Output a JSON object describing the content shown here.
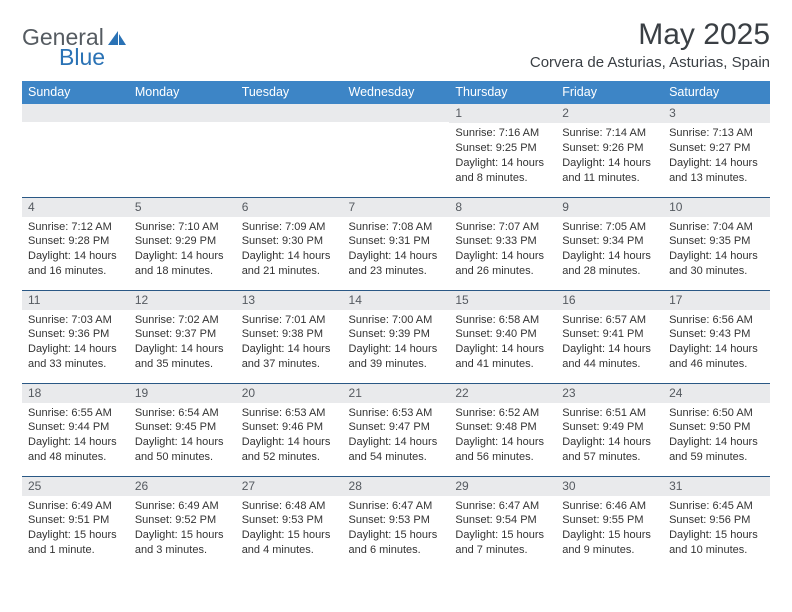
{
  "brand": {
    "general": "General",
    "blue": "Blue"
  },
  "title": {
    "month": "May 2025",
    "location": "Corvera de Asturias, Asturias, Spain"
  },
  "colors": {
    "header_bg": "#3d85c6",
    "header_text": "#ffffff",
    "rule": "#2a5885",
    "daynum_bg": "#e9eaec",
    "brand_blue": "#2a72b5",
    "brand_grey": "#555b61"
  },
  "daynames": [
    "Sunday",
    "Monday",
    "Tuesday",
    "Wednesday",
    "Thursday",
    "Friday",
    "Saturday"
  ],
  "weeks": [
    [
      {
        "n": "",
        "sr": "",
        "ss": "",
        "dl": ""
      },
      {
        "n": "",
        "sr": "",
        "ss": "",
        "dl": ""
      },
      {
        "n": "",
        "sr": "",
        "ss": "",
        "dl": ""
      },
      {
        "n": "",
        "sr": "",
        "ss": "",
        "dl": ""
      },
      {
        "n": "1",
        "sr": "Sunrise: 7:16 AM",
        "ss": "Sunset: 9:25 PM",
        "dl": "Daylight: 14 hours and 8 minutes."
      },
      {
        "n": "2",
        "sr": "Sunrise: 7:14 AM",
        "ss": "Sunset: 9:26 PM",
        "dl": "Daylight: 14 hours and 11 minutes."
      },
      {
        "n": "3",
        "sr": "Sunrise: 7:13 AM",
        "ss": "Sunset: 9:27 PM",
        "dl": "Daylight: 14 hours and 13 minutes."
      }
    ],
    [
      {
        "n": "4",
        "sr": "Sunrise: 7:12 AM",
        "ss": "Sunset: 9:28 PM",
        "dl": "Daylight: 14 hours and 16 minutes."
      },
      {
        "n": "5",
        "sr": "Sunrise: 7:10 AM",
        "ss": "Sunset: 9:29 PM",
        "dl": "Daylight: 14 hours and 18 minutes."
      },
      {
        "n": "6",
        "sr": "Sunrise: 7:09 AM",
        "ss": "Sunset: 9:30 PM",
        "dl": "Daylight: 14 hours and 21 minutes."
      },
      {
        "n": "7",
        "sr": "Sunrise: 7:08 AM",
        "ss": "Sunset: 9:31 PM",
        "dl": "Daylight: 14 hours and 23 minutes."
      },
      {
        "n": "8",
        "sr": "Sunrise: 7:07 AM",
        "ss": "Sunset: 9:33 PM",
        "dl": "Daylight: 14 hours and 26 minutes."
      },
      {
        "n": "9",
        "sr": "Sunrise: 7:05 AM",
        "ss": "Sunset: 9:34 PM",
        "dl": "Daylight: 14 hours and 28 minutes."
      },
      {
        "n": "10",
        "sr": "Sunrise: 7:04 AM",
        "ss": "Sunset: 9:35 PM",
        "dl": "Daylight: 14 hours and 30 minutes."
      }
    ],
    [
      {
        "n": "11",
        "sr": "Sunrise: 7:03 AM",
        "ss": "Sunset: 9:36 PM",
        "dl": "Daylight: 14 hours and 33 minutes."
      },
      {
        "n": "12",
        "sr": "Sunrise: 7:02 AM",
        "ss": "Sunset: 9:37 PM",
        "dl": "Daylight: 14 hours and 35 minutes."
      },
      {
        "n": "13",
        "sr": "Sunrise: 7:01 AM",
        "ss": "Sunset: 9:38 PM",
        "dl": "Daylight: 14 hours and 37 minutes."
      },
      {
        "n": "14",
        "sr": "Sunrise: 7:00 AM",
        "ss": "Sunset: 9:39 PM",
        "dl": "Daylight: 14 hours and 39 minutes."
      },
      {
        "n": "15",
        "sr": "Sunrise: 6:58 AM",
        "ss": "Sunset: 9:40 PM",
        "dl": "Daylight: 14 hours and 41 minutes."
      },
      {
        "n": "16",
        "sr": "Sunrise: 6:57 AM",
        "ss": "Sunset: 9:41 PM",
        "dl": "Daylight: 14 hours and 44 minutes."
      },
      {
        "n": "17",
        "sr": "Sunrise: 6:56 AM",
        "ss": "Sunset: 9:43 PM",
        "dl": "Daylight: 14 hours and 46 minutes."
      }
    ],
    [
      {
        "n": "18",
        "sr": "Sunrise: 6:55 AM",
        "ss": "Sunset: 9:44 PM",
        "dl": "Daylight: 14 hours and 48 minutes."
      },
      {
        "n": "19",
        "sr": "Sunrise: 6:54 AM",
        "ss": "Sunset: 9:45 PM",
        "dl": "Daylight: 14 hours and 50 minutes."
      },
      {
        "n": "20",
        "sr": "Sunrise: 6:53 AM",
        "ss": "Sunset: 9:46 PM",
        "dl": "Daylight: 14 hours and 52 minutes."
      },
      {
        "n": "21",
        "sr": "Sunrise: 6:53 AM",
        "ss": "Sunset: 9:47 PM",
        "dl": "Daylight: 14 hours and 54 minutes."
      },
      {
        "n": "22",
        "sr": "Sunrise: 6:52 AM",
        "ss": "Sunset: 9:48 PM",
        "dl": "Daylight: 14 hours and 56 minutes."
      },
      {
        "n": "23",
        "sr": "Sunrise: 6:51 AM",
        "ss": "Sunset: 9:49 PM",
        "dl": "Daylight: 14 hours and 57 minutes."
      },
      {
        "n": "24",
        "sr": "Sunrise: 6:50 AM",
        "ss": "Sunset: 9:50 PM",
        "dl": "Daylight: 14 hours and 59 minutes."
      }
    ],
    [
      {
        "n": "25",
        "sr": "Sunrise: 6:49 AM",
        "ss": "Sunset: 9:51 PM",
        "dl": "Daylight: 15 hours and 1 minute."
      },
      {
        "n": "26",
        "sr": "Sunrise: 6:49 AM",
        "ss": "Sunset: 9:52 PM",
        "dl": "Daylight: 15 hours and 3 minutes."
      },
      {
        "n": "27",
        "sr": "Sunrise: 6:48 AM",
        "ss": "Sunset: 9:53 PM",
        "dl": "Daylight: 15 hours and 4 minutes."
      },
      {
        "n": "28",
        "sr": "Sunrise: 6:47 AM",
        "ss": "Sunset: 9:53 PM",
        "dl": "Daylight: 15 hours and 6 minutes."
      },
      {
        "n": "29",
        "sr": "Sunrise: 6:47 AM",
        "ss": "Sunset: 9:54 PM",
        "dl": "Daylight: 15 hours and 7 minutes."
      },
      {
        "n": "30",
        "sr": "Sunrise: 6:46 AM",
        "ss": "Sunset: 9:55 PM",
        "dl": "Daylight: 15 hours and 9 minutes."
      },
      {
        "n": "31",
        "sr": "Sunrise: 6:45 AM",
        "ss": "Sunset: 9:56 PM",
        "dl": "Daylight: 15 hours and 10 minutes."
      }
    ]
  ]
}
